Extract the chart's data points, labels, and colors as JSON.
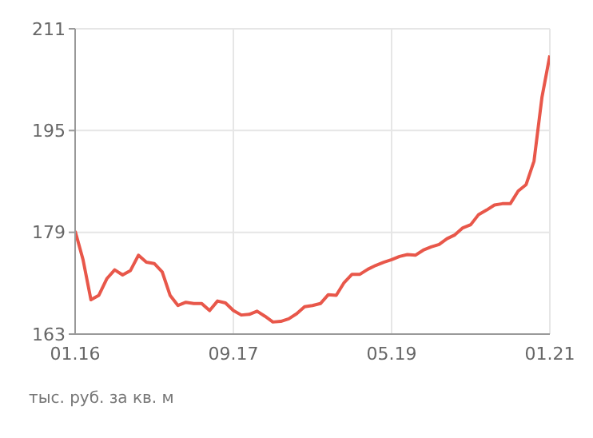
{
  "chart_data": {
    "type": "line",
    "color": "#e8574a",
    "x": [
      "2016-01",
      "2016-02",
      "2016-03",
      "2016-04",
      "2016-05",
      "2016-06",
      "2016-07",
      "2016-08",
      "2016-09",
      "2016-10",
      "2016-11",
      "2016-12",
      "2017-01",
      "2017-02",
      "2017-03",
      "2017-04",
      "2017-05",
      "2017-06",
      "2017-07",
      "2017-08",
      "2017-09",
      "2017-10",
      "2017-11",
      "2017-12",
      "2018-01",
      "2018-02",
      "2018-03",
      "2018-04",
      "2018-05",
      "2018-06",
      "2018-07",
      "2018-08",
      "2018-09",
      "2018-10",
      "2018-11",
      "2018-12",
      "2019-01",
      "2019-02",
      "2019-03",
      "2019-04",
      "2019-05",
      "2019-06",
      "2019-07",
      "2019-08",
      "2019-09",
      "2019-10",
      "2019-11",
      "2019-12",
      "2020-01",
      "2020-02",
      "2020-03",
      "2020-04",
      "2020-05",
      "2020-06",
      "2020-07",
      "2020-08",
      "2020-09",
      "2020-10",
      "2020-11",
      "2020-12",
      "2021-01"
    ],
    "values": [
      179.2,
      174.7,
      168.4,
      169.1,
      171.7,
      173.1,
      172.3,
      173.0,
      175.4,
      174.3,
      174.1,
      172.8,
      169.1,
      167.5,
      168.0,
      167.8,
      167.8,
      166.7,
      168.2,
      167.9,
      166.7,
      166.0,
      166.1,
      166.6,
      165.8,
      164.9,
      165.0,
      165.4,
      166.2,
      167.3,
      167.5,
      167.8,
      169.2,
      169.1,
      171.1,
      172.4,
      172.4,
      173.2,
      173.8,
      174.3,
      174.7,
      175.2,
      175.5,
      175.4,
      176.2,
      176.7,
      177.1,
      178.0,
      178.6,
      179.7,
      180.2,
      181.8,
      182.5,
      183.3,
      183.5,
      183.5,
      185.5,
      186.5,
      190.2,
      200.2,
      206.8
    ],
    "xlim": [
      "2016-01",
      "2021-01"
    ],
    "xticks": [
      {
        "value": "2016-01",
        "label": "01.16"
      },
      {
        "value": "2017-09",
        "label": "09.17"
      },
      {
        "value": "2019-05",
        "label": "05.19"
      },
      {
        "value": "2021-01",
        "label": "01.21"
      }
    ],
    "ylim": [
      163,
      211
    ],
    "yticks": [
      163,
      179,
      195,
      211
    ],
    "grid": true,
    "marker": "none",
    "line_style": "solid",
    "annotations": [
      "тыс. руб. за кв. м"
    ]
  }
}
